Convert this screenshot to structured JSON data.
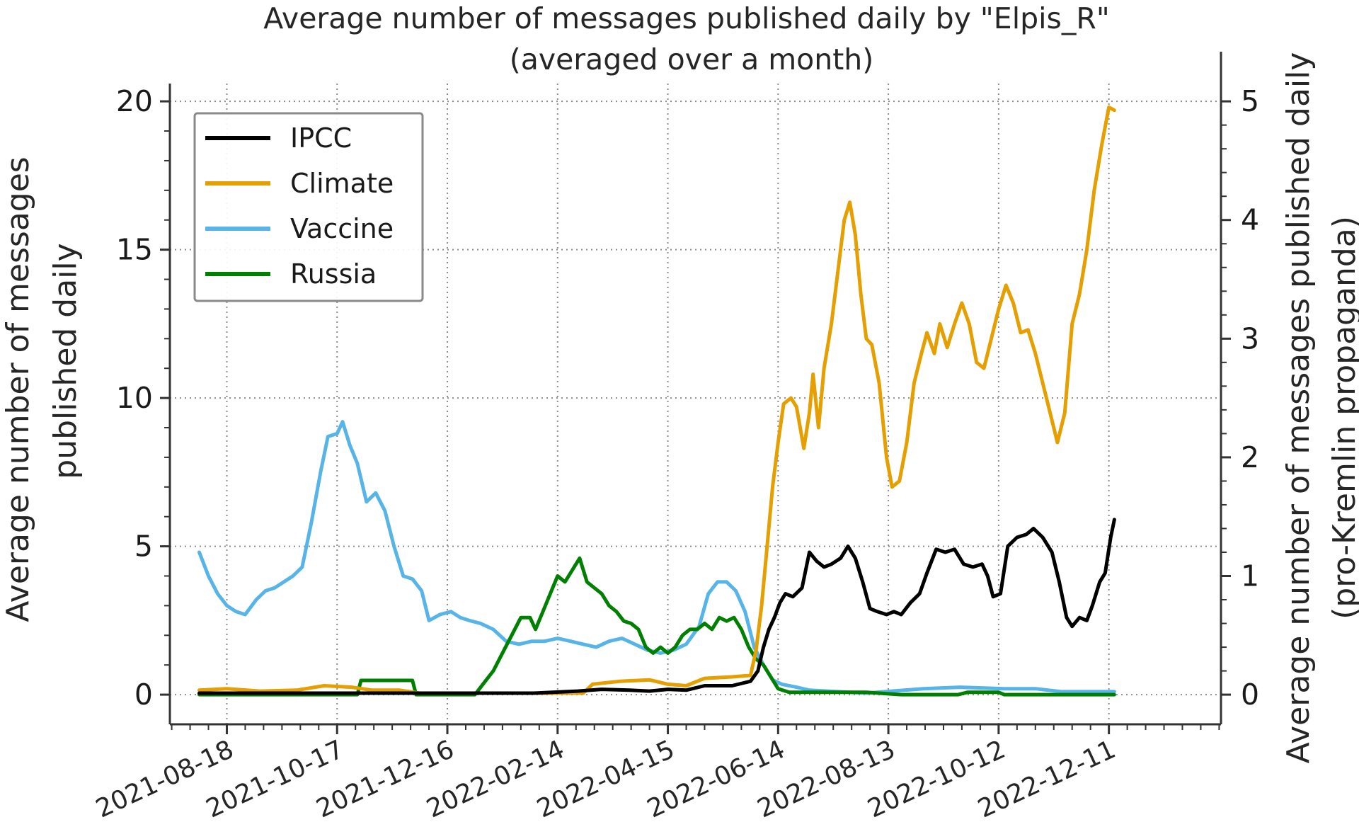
{
  "chart_data": {
    "type": "line",
    "title": "Average number of messages published daily by \"Elpis_R\"",
    "subtitle": "(averaged over a month)",
    "ylabel_left": [
      "Average number of messages",
      "published daily"
    ],
    "ylabel_right": [
      "Average number of messages published daily",
      "(pro-Kremlin propaganda)"
    ],
    "xlim": [
      "2021-07-18",
      "2023-02-10"
    ],
    "ylim_left": [
      -1.0,
      20.6
    ],
    "ylim_right": [
      -0.25,
      5.15
    ],
    "yticks_left": [
      "0",
      "5",
      "10",
      "15",
      "20"
    ],
    "yticks_right": [
      "0",
      "1",
      "2",
      "3",
      "4",
      "5"
    ],
    "xticks": [
      "2021-08-18",
      "2021-10-17",
      "2021-12-16",
      "2022-02-14",
      "2022-04-15",
      "2022-06-14",
      "2022-08-13",
      "2022-10-12",
      "2022-12-11"
    ],
    "grid": true,
    "legend_position": "top-left",
    "series": [
      {
        "name": "IPCC",
        "color": "#000000",
        "axis": "left",
        "points": [
          [
            "2021-08-03",
            0.05
          ],
          [
            "2021-09-01",
            0.05
          ],
          [
            "2021-10-01",
            0.05
          ],
          [
            "2021-11-01",
            0.05
          ],
          [
            "2021-12-01",
            0.05
          ],
          [
            "2022-01-01",
            0.05
          ],
          [
            "2022-02-01",
            0.05
          ],
          [
            "2022-02-25",
            0.12
          ],
          [
            "2022-03-10",
            0.18
          ],
          [
            "2022-03-25",
            0.15
          ],
          [
            "2022-04-05",
            0.12
          ],
          [
            "2022-04-15",
            0.18
          ],
          [
            "2022-04-25",
            0.15
          ],
          [
            "2022-05-05",
            0.3
          ],
          [
            "2022-05-20",
            0.3
          ],
          [
            "2022-05-30",
            0.45
          ],
          [
            "2022-06-03",
            0.8
          ],
          [
            "2022-06-06",
            1.6
          ],
          [
            "2022-06-09",
            2.2
          ],
          [
            "2022-06-12",
            2.6
          ],
          [
            "2022-06-15",
            3.1
          ],
          [
            "2022-06-18",
            3.4
          ],
          [
            "2022-06-22",
            3.3
          ],
          [
            "2022-06-27",
            3.6
          ],
          [
            "2022-07-01",
            4.8
          ],
          [
            "2022-07-05",
            4.5
          ],
          [
            "2022-07-09",
            4.3
          ],
          [
            "2022-07-13",
            4.4
          ],
          [
            "2022-07-18",
            4.6
          ],
          [
            "2022-07-22",
            5.0
          ],
          [
            "2022-07-26",
            4.6
          ],
          [
            "2022-07-30",
            3.8
          ],
          [
            "2022-08-03",
            2.9
          ],
          [
            "2022-08-07",
            2.8
          ],
          [
            "2022-08-12",
            2.7
          ],
          [
            "2022-08-16",
            2.8
          ],
          [
            "2022-08-20",
            2.7
          ],
          [
            "2022-08-25",
            3.1
          ],
          [
            "2022-08-30",
            3.4
          ],
          [
            "2022-09-03",
            4.1
          ],
          [
            "2022-09-08",
            4.9
          ],
          [
            "2022-09-13",
            4.8
          ],
          [
            "2022-09-18",
            4.9
          ],
          [
            "2022-09-23",
            4.4
          ],
          [
            "2022-09-28",
            4.3
          ],
          [
            "2022-10-03",
            4.4
          ],
          [
            "2022-10-06",
            4.0
          ],
          [
            "2022-10-09",
            3.3
          ],
          [
            "2022-10-13",
            3.4
          ],
          [
            "2022-10-17",
            5.0
          ],
          [
            "2022-10-22",
            5.3
          ],
          [
            "2022-10-27",
            5.4
          ],
          [
            "2022-10-31",
            5.6
          ],
          [
            "2022-11-05",
            5.3
          ],
          [
            "2022-11-10",
            4.8
          ],
          [
            "2022-11-14",
            3.8
          ],
          [
            "2022-11-18",
            2.6
          ],
          [
            "2022-11-21",
            2.3
          ],
          [
            "2022-11-25",
            2.6
          ],
          [
            "2022-11-29",
            2.5
          ],
          [
            "2022-12-02",
            3.0
          ],
          [
            "2022-12-06",
            3.8
          ],
          [
            "2022-12-09",
            4.1
          ],
          [
            "2022-12-12",
            5.3
          ],
          [
            "2022-12-14",
            5.9
          ]
        ]
      },
      {
        "name": "Climate",
        "color": "#E69F00",
        "axis": "left",
        "points": [
          [
            "2021-08-03",
            0.15
          ],
          [
            "2021-08-18",
            0.2
          ],
          [
            "2021-09-05",
            0.12
          ],
          [
            "2021-09-25",
            0.15
          ],
          [
            "2021-10-10",
            0.3
          ],
          [
            "2021-10-25",
            0.25
          ],
          [
            "2021-11-05",
            0.15
          ],
          [
            "2021-11-20",
            0.15
          ],
          [
            "2021-12-01",
            0.05
          ],
          [
            "2022-01-01",
            0.05
          ],
          [
            "2022-02-01",
            0.05
          ],
          [
            "2022-02-28",
            0.05
          ],
          [
            "2022-03-05",
            0.35
          ],
          [
            "2022-03-20",
            0.45
          ],
          [
            "2022-04-05",
            0.5
          ],
          [
            "2022-04-15",
            0.35
          ],
          [
            "2022-04-25",
            0.3
          ],
          [
            "2022-05-05",
            0.55
          ],
          [
            "2022-05-20",
            0.6
          ],
          [
            "2022-05-30",
            0.65
          ],
          [
            "2022-06-02",
            1.5
          ],
          [
            "2022-06-05",
            3.0
          ],
          [
            "2022-06-08",
            5.0
          ],
          [
            "2022-06-11",
            7.0
          ],
          [
            "2022-06-14",
            8.5
          ],
          [
            "2022-06-17",
            9.8
          ],
          [
            "2022-06-21",
            10.0
          ],
          [
            "2022-06-24",
            9.7
          ],
          [
            "2022-06-28",
            8.3
          ],
          [
            "2022-07-01",
            9.5
          ],
          [
            "2022-07-03",
            10.8
          ],
          [
            "2022-07-06",
            9.0
          ],
          [
            "2022-07-09",
            11.0
          ],
          [
            "2022-07-13",
            12.5
          ],
          [
            "2022-07-17",
            14.5
          ],
          [
            "2022-07-20",
            16.0
          ],
          [
            "2022-07-23",
            16.6
          ],
          [
            "2022-07-26",
            15.5
          ],
          [
            "2022-07-29",
            13.5
          ],
          [
            "2022-08-01",
            12.0
          ],
          [
            "2022-08-04",
            11.8
          ],
          [
            "2022-08-08",
            10.5
          ],
          [
            "2022-08-12",
            8.0
          ],
          [
            "2022-08-15",
            7.0
          ],
          [
            "2022-08-19",
            7.2
          ],
          [
            "2022-08-23",
            8.5
          ],
          [
            "2022-08-27",
            10.5
          ],
          [
            "2022-08-31",
            11.5
          ],
          [
            "2022-09-03",
            12.2
          ],
          [
            "2022-09-07",
            11.5
          ],
          [
            "2022-09-10",
            12.5
          ],
          [
            "2022-09-14",
            11.7
          ],
          [
            "2022-09-18",
            12.5
          ],
          [
            "2022-09-22",
            13.2
          ],
          [
            "2022-09-26",
            12.5
          ],
          [
            "2022-09-30",
            11.2
          ],
          [
            "2022-10-04",
            11.0
          ],
          [
            "2022-10-08",
            12.0
          ],
          [
            "2022-10-12",
            13.0
          ],
          [
            "2022-10-16",
            13.8
          ],
          [
            "2022-10-20",
            13.2
          ],
          [
            "2022-10-24",
            12.2
          ],
          [
            "2022-10-28",
            12.3
          ],
          [
            "2022-11-01",
            11.5
          ],
          [
            "2022-11-05",
            10.5
          ],
          [
            "2022-11-09",
            9.5
          ],
          [
            "2022-11-13",
            8.5
          ],
          [
            "2022-11-17",
            9.5
          ],
          [
            "2022-11-21",
            12.5
          ],
          [
            "2022-11-25",
            13.5
          ],
          [
            "2022-11-29",
            15.0
          ],
          [
            "2022-12-03",
            17.0
          ],
          [
            "2022-12-07",
            18.5
          ],
          [
            "2022-12-11",
            19.8
          ],
          [
            "2022-12-14",
            19.7
          ]
        ]
      },
      {
        "name": "Vaccine",
        "color": "#56B4E9",
        "axis": "left",
        "points": [
          [
            "2021-08-03",
            4.8
          ],
          [
            "2021-08-08",
            4.0
          ],
          [
            "2021-08-13",
            3.4
          ],
          [
            "2021-08-18",
            3.0
          ],
          [
            "2021-08-23",
            2.8
          ],
          [
            "2021-08-28",
            2.7
          ],
          [
            "2021-09-03",
            3.2
          ],
          [
            "2021-09-08",
            3.5
          ],
          [
            "2021-09-13",
            3.6
          ],
          [
            "2021-09-18",
            3.8
          ],
          [
            "2021-09-23",
            4.0
          ],
          [
            "2021-09-28",
            4.3
          ],
          [
            "2021-10-03",
            5.8
          ],
          [
            "2021-10-08",
            7.5
          ],
          [
            "2021-10-12",
            8.7
          ],
          [
            "2021-10-17",
            8.8
          ],
          [
            "2021-10-20",
            9.2
          ],
          [
            "2021-10-24",
            8.4
          ],
          [
            "2021-10-28",
            7.8
          ],
          [
            "2021-11-02",
            6.5
          ],
          [
            "2021-11-07",
            6.8
          ],
          [
            "2021-11-12",
            6.2
          ],
          [
            "2021-11-17",
            5.0
          ],
          [
            "2021-11-22",
            4.0
          ],
          [
            "2021-11-27",
            3.9
          ],
          [
            "2021-12-02",
            3.5
          ],
          [
            "2021-12-06",
            2.5
          ],
          [
            "2021-12-12",
            2.7
          ],
          [
            "2021-12-18",
            2.8
          ],
          [
            "2021-12-23",
            2.6
          ],
          [
            "2021-12-28",
            2.5
          ],
          [
            "2022-01-03",
            2.4
          ],
          [
            "2022-01-10",
            2.2
          ],
          [
            "2022-01-17",
            1.8
          ],
          [
            "2022-01-24",
            1.7
          ],
          [
            "2022-01-31",
            1.8
          ],
          [
            "2022-02-07",
            1.8
          ],
          [
            "2022-02-14",
            1.9
          ],
          [
            "2022-02-21",
            1.8
          ],
          [
            "2022-02-28",
            1.7
          ],
          [
            "2022-03-07",
            1.6
          ],
          [
            "2022-03-14",
            1.8
          ],
          [
            "2022-03-21",
            1.9
          ],
          [
            "2022-03-28",
            1.7
          ],
          [
            "2022-04-04",
            1.5
          ],
          [
            "2022-04-11",
            1.4
          ],
          [
            "2022-04-18",
            1.5
          ],
          [
            "2022-04-25",
            1.7
          ],
          [
            "2022-05-02",
            2.3
          ],
          [
            "2022-05-07",
            3.4
          ],
          [
            "2022-05-12",
            3.8
          ],
          [
            "2022-05-17",
            3.8
          ],
          [
            "2022-05-22",
            3.5
          ],
          [
            "2022-05-27",
            2.8
          ],
          [
            "2022-06-01",
            1.6
          ],
          [
            "2022-06-06",
            1.0
          ],
          [
            "2022-06-11",
            0.5
          ],
          [
            "2022-06-16",
            0.35
          ],
          [
            "2022-06-24",
            0.25
          ],
          [
            "2022-07-01",
            0.15
          ],
          [
            "2022-08-01",
            0.05
          ],
          [
            "2022-09-01",
            0.2
          ],
          [
            "2022-09-21",
            0.25
          ],
          [
            "2022-10-15",
            0.2
          ],
          [
            "2022-11-01",
            0.2
          ],
          [
            "2022-11-15",
            0.1
          ],
          [
            "2022-12-14",
            0.1
          ]
        ]
      },
      {
        "name": "Russia",
        "color": "#008000",
        "axis": "right",
        "points": [
          [
            "2021-08-03",
            0.0
          ],
          [
            "2021-10-28",
            0.0
          ],
          [
            "2021-10-30",
            0.12
          ],
          [
            "2021-11-27",
            0.12
          ],
          [
            "2021-11-29",
            0.0
          ],
          [
            "2021-12-31",
            0.0
          ],
          [
            "2022-01-05",
            0.1
          ],
          [
            "2022-01-10",
            0.2
          ],
          [
            "2022-01-15",
            0.35
          ],
          [
            "2022-01-20",
            0.5
          ],
          [
            "2022-01-25",
            0.65
          ],
          [
            "2022-01-30",
            0.65
          ],
          [
            "2022-02-02",
            0.55
          ],
          [
            "2022-02-06",
            0.7
          ],
          [
            "2022-02-10",
            0.85
          ],
          [
            "2022-02-14",
            1.0
          ],
          [
            "2022-02-18",
            0.95
          ],
          [
            "2022-02-22",
            1.05
          ],
          [
            "2022-02-26",
            1.15
          ],
          [
            "2022-03-02",
            0.95
          ],
          [
            "2022-03-06",
            0.9
          ],
          [
            "2022-03-10",
            0.85
          ],
          [
            "2022-03-14",
            0.75
          ],
          [
            "2022-03-18",
            0.7
          ],
          [
            "2022-03-22",
            0.62
          ],
          [
            "2022-03-26",
            0.6
          ],
          [
            "2022-03-30",
            0.55
          ],
          [
            "2022-04-03",
            0.4
          ],
          [
            "2022-04-07",
            0.35
          ],
          [
            "2022-04-11",
            0.4
          ],
          [
            "2022-04-15",
            0.35
          ],
          [
            "2022-04-19",
            0.4
          ],
          [
            "2022-04-23",
            0.5
          ],
          [
            "2022-04-27",
            0.55
          ],
          [
            "2022-05-01",
            0.55
          ],
          [
            "2022-05-05",
            0.6
          ],
          [
            "2022-05-09",
            0.55
          ],
          [
            "2022-05-13",
            0.65
          ],
          [
            "2022-05-17",
            0.62
          ],
          [
            "2022-05-21",
            0.65
          ],
          [
            "2022-05-25",
            0.55
          ],
          [
            "2022-05-29",
            0.4
          ],
          [
            "2022-06-02",
            0.3
          ],
          [
            "2022-06-06",
            0.25
          ],
          [
            "2022-06-10",
            0.15
          ],
          [
            "2022-06-14",
            0.05
          ],
          [
            "2022-06-20",
            0.02
          ],
          [
            "2022-07-10",
            0.02
          ],
          [
            "2022-07-20",
            0.02
          ],
          [
            "2022-08-01",
            0.02
          ],
          [
            "2022-08-20",
            0.0
          ],
          [
            "2022-09-20",
            0.0
          ],
          [
            "2022-09-25",
            0.02
          ],
          [
            "2022-10-12",
            0.02
          ],
          [
            "2022-10-15",
            0.0
          ],
          [
            "2022-12-14",
            0.0
          ]
        ]
      }
    ]
  }
}
